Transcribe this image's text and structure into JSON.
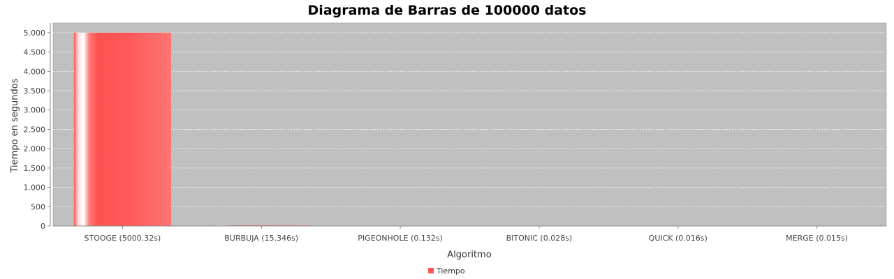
{
  "chart_data": {
    "type": "bar",
    "title": "Diagrama de Barras de 100000 datos",
    "xlabel": "Algoritmo",
    "ylabel": "Tiempo en segundos",
    "categories": [
      "STOOGE (5000.32s)",
      "BURBUJA (15.346s)",
      "PIGEONHOLE (0.132s)",
      "BITONIC (0.028s)",
      "QUICK (0.016s)",
      "MERGE (0.015s)"
    ],
    "series": [
      {
        "name": "Tiempo",
        "values": [
          5000.32,
          15.346,
          0.132,
          0.028,
          0.016,
          0.015
        ]
      }
    ],
    "ylim": [
      0,
      5250
    ],
    "yticks": [
      0,
      500,
      1000,
      1500,
      2000,
      2500,
      3000,
      3500,
      4000,
      4500,
      5000
    ],
    "ytick_labels": [
      "0",
      "500",
      "1.000",
      "1.500",
      "2.000",
      "2.500",
      "3.000",
      "3.500",
      "4.000",
      "4.500",
      "5.000"
    ],
    "grid": true,
    "legend_position": "bottom-center",
    "colors": {
      "plot_background": "#c0c0c0",
      "bar": "#ff5555",
      "gridline": "#ffffff"
    }
  }
}
